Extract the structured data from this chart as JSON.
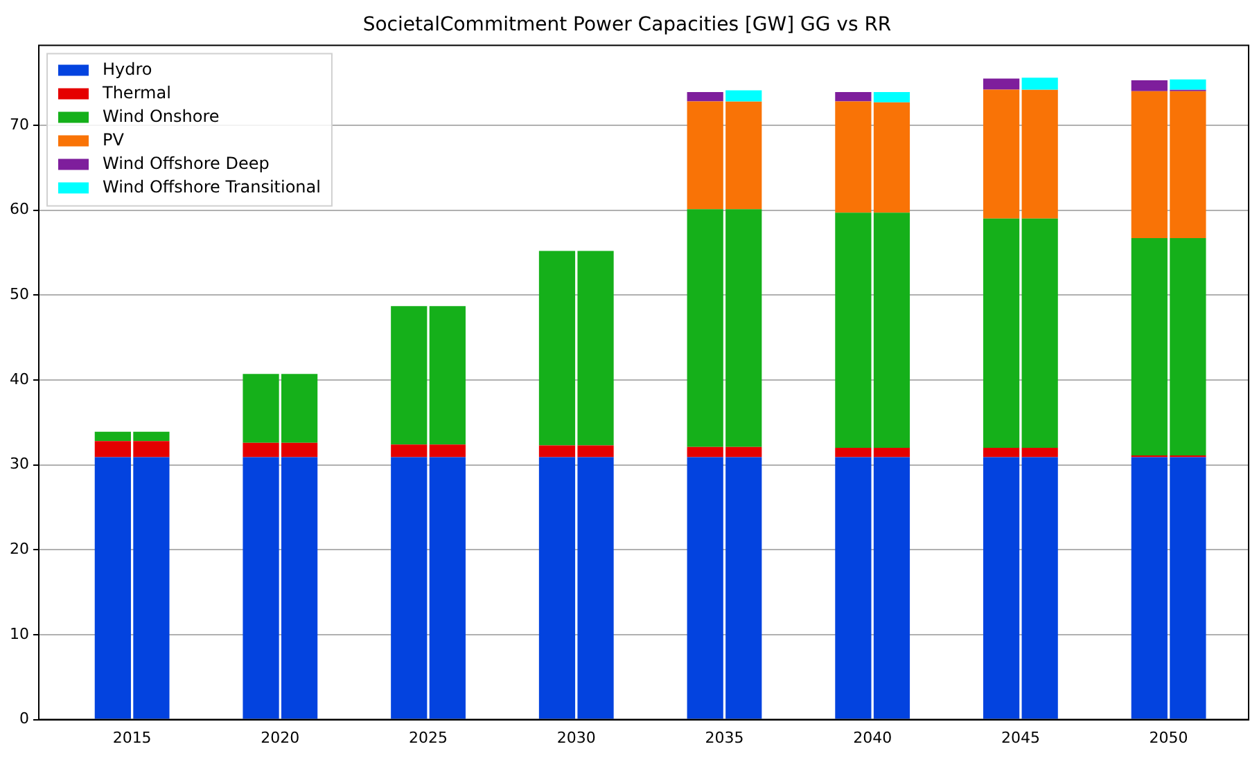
{
  "chart_data": {
    "type": "bar",
    "title": "SocietalCommitment Power Capacities [GW] GG vs RR",
    "legend": "top left",
    "grid": "y",
    "xlim": [
      2011.85,
      2052.7
    ],
    "xticks": [
      2015,
      2020,
      2025,
      2030,
      2035,
      2040,
      2045,
      2050
    ],
    "ylim": [
      0,
      79.4
    ],
    "yticks": [
      0,
      10,
      20,
      30,
      40,
      50,
      60,
      70
    ],
    "series": [
      {
        "name": "Hydro",
        "color": "#0343df",
        "x": [
          2014.35,
          2019.35,
          2024.35,
          2029.35,
          2034.35,
          2039.35,
          2044.35,
          2049.35
        ],
        "base": [
          0,
          0,
          0,
          0,
          0,
          0,
          0,
          0
        ],
        "values": [
          30.9,
          30.9,
          30.9,
          30.9,
          30.9,
          30.9,
          30.9,
          30.9
        ]
      },
      {
        "name": "Thermal",
        "color": "#e50000",
        "x": [
          2014.35,
          2019.35,
          2024.35,
          2029.35,
          2034.35,
          2039.35,
          2044.35,
          2049.35
        ],
        "base": [
          30.9,
          30.9,
          30.9,
          30.9,
          30.9,
          30.9,
          30.9,
          30.9
        ],
        "values": [
          1.9,
          1.7,
          1.5,
          1.4,
          1.2,
          1.1,
          1.1,
          0.2
        ]
      },
      {
        "name": "Wind Onshore",
        "color": "#15b01a",
        "x": [
          2014.35,
          2019.35,
          2024.35,
          2029.35,
          2034.35,
          2039.35,
          2044.35,
          2049.35
        ],
        "base": [
          32.8,
          32.6,
          32.4,
          32.3,
          32.1,
          32.0,
          32.0,
          31.1
        ],
        "values": [
          1.1,
          8.1,
          16.3,
          22.9,
          28.0,
          27.7,
          27.0,
          25.6
        ]
      },
      {
        "name": "PV",
        "color": "#f97306",
        "x": [
          null,
          null,
          null,
          null,
          2034.35,
          2039.35,
          2044.35,
          2049.35
        ],
        "base": [
          null,
          null,
          null,
          null,
          60.1,
          59.7,
          59.0,
          56.7
        ],
        "values": [
          null,
          null,
          null,
          null,
          12.7,
          13.1,
          15.2,
          17.3
        ]
      },
      {
        "name": "Wind Offshore Deep",
        "color": "#7e1e9c",
        "x": [
          null,
          null,
          null,
          null,
          2034.35,
          2039.35,
          2044.35,
          2049.35
        ],
        "base": [
          null,
          null,
          null,
          null,
          72.8,
          72.8,
          74.2,
          74.0
        ],
        "values": [
          null,
          null,
          null,
          null,
          1.1,
          1.1,
          1.3,
          1.3
        ]
      },
      {
        "name": "Wind Offshore Transitional",
        "color": "#00ffff",
        "x": [
          null,
          null,
          null,
          null,
          2035.65,
          2040.65,
          2045.65,
          2050.65
        ],
        "base": [
          null,
          null,
          null,
          null,
          72.8,
          72.7,
          74.2,
          74.2
        ],
        "values": [
          null,
          null,
          null,
          null,
          1.3,
          1.2,
          1.4,
          1.2
        ]
      },
      {
        "color": "#0343df",
        "x": [
          2015.65,
          2020.65,
          2025.65,
          2030.65,
          2035.65,
          2040.65,
          2045.65,
          2050.65
        ],
        "base": [
          0,
          0,
          0,
          0,
          0,
          0,
          0,
          0
        ],
        "values": [
          30.9,
          30.9,
          30.9,
          30.9,
          30.9,
          30.9,
          30.9,
          30.9
        ]
      },
      {
        "color": "#e50000",
        "x": [
          2015.65,
          2020.65,
          2025.65,
          2030.65,
          2035.65,
          2040.65,
          2045.65,
          2050.65
        ],
        "base": [
          30.9,
          30.9,
          30.9,
          30.9,
          30.9,
          30.9,
          30.9,
          30.9
        ],
        "values": [
          1.9,
          1.7,
          1.5,
          1.4,
          1.2,
          1.1,
          1.1,
          0.2
        ]
      },
      {
        "color": "#15b01a",
        "x": [
          2015.65,
          2020.65,
          2025.65,
          2030.65,
          2035.65,
          2040.65,
          2045.65,
          2050.65
        ],
        "base": [
          32.8,
          32.6,
          32.4,
          32.3,
          32.1,
          32.0,
          32.0,
          31.1
        ],
        "values": [
          1.1,
          8.1,
          16.3,
          22.9,
          28.0,
          27.7,
          27.0,
          25.6
        ]
      },
      {
        "color": "#f97306",
        "x": [
          null,
          null,
          null,
          null,
          2035.65,
          2040.65,
          2045.65,
          2050.65
        ],
        "base": [
          null,
          null,
          null,
          null,
          60.1,
          59.7,
          59.0,
          56.7
        ],
        "values": [
          null,
          null,
          null,
          null,
          12.7,
          13.0,
          15.2,
          17.3
        ]
      },
      {
        "color": "#7e1e9c",
        "x": [
          null,
          null,
          null,
          null,
          null,
          null,
          null,
          2050.65
        ],
        "base": [
          null,
          null,
          null,
          null,
          null,
          null,
          null,
          74.0
        ],
        "values": [
          null,
          null,
          null,
          null,
          null,
          null,
          null,
          0.2
        ]
      }
    ]
  }
}
